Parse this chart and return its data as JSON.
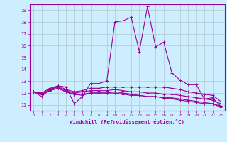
{
  "xlabel": "Windchill (Refroidissement éolien,°C)",
  "background_color": "#cceeff",
  "line_color": "#990099",
  "grid_color": "#b0c8d0",
  "xlim": [
    -0.5,
    23.5
  ],
  "ylim": [
    10.5,
    19.5
  ],
  "yticks": [
    11,
    12,
    13,
    14,
    15,
    16,
    17,
    18,
    19
  ],
  "xticks": [
    0,
    1,
    2,
    3,
    4,
    5,
    6,
    7,
    8,
    9,
    10,
    11,
    12,
    13,
    14,
    15,
    16,
    17,
    18,
    19,
    20,
    21,
    22,
    23
  ],
  "series": [
    [
      12.1,
      11.7,
      12.3,
      12.6,
      12.5,
      11.1,
      11.7,
      12.8,
      12.8,
      13.0,
      18.0,
      18.1,
      18.4,
      15.5,
      19.3,
      15.9,
      16.3,
      13.7,
      13.1,
      12.7,
      12.7,
      11.5,
      11.6,
      10.9
    ],
    [
      12.1,
      12.0,
      12.4,
      12.6,
      12.3,
      12.1,
      12.2,
      12.4,
      12.4,
      12.5,
      12.5,
      12.5,
      12.5,
      12.5,
      12.5,
      12.5,
      12.5,
      12.4,
      12.3,
      12.1,
      12.0,
      11.9,
      11.8,
      11.3
    ],
    [
      12.1,
      12.0,
      12.3,
      12.5,
      12.2,
      12.0,
      12.1,
      12.2,
      12.2,
      12.2,
      12.3,
      12.2,
      12.1,
      12.1,
      12.0,
      12.0,
      11.9,
      11.9,
      11.8,
      11.7,
      11.6,
      11.5,
      11.4,
      11.1
    ],
    [
      12.1,
      11.9,
      12.2,
      12.4,
      12.1,
      11.9,
      11.8,
      12.0,
      12.0,
      12.0,
      12.0,
      11.9,
      11.8,
      11.8,
      11.7,
      11.7,
      11.6,
      11.5,
      11.4,
      11.3,
      11.2,
      11.1,
      11.1,
      10.8
    ],
    [
      12.1,
      11.9,
      12.2,
      12.4,
      12.1,
      11.9,
      11.9,
      12.0,
      12.0,
      12.0,
      12.1,
      12.0,
      11.9,
      11.8,
      11.7,
      11.7,
      11.6,
      11.6,
      11.5,
      11.4,
      11.3,
      11.2,
      11.1,
      10.9
    ]
  ]
}
